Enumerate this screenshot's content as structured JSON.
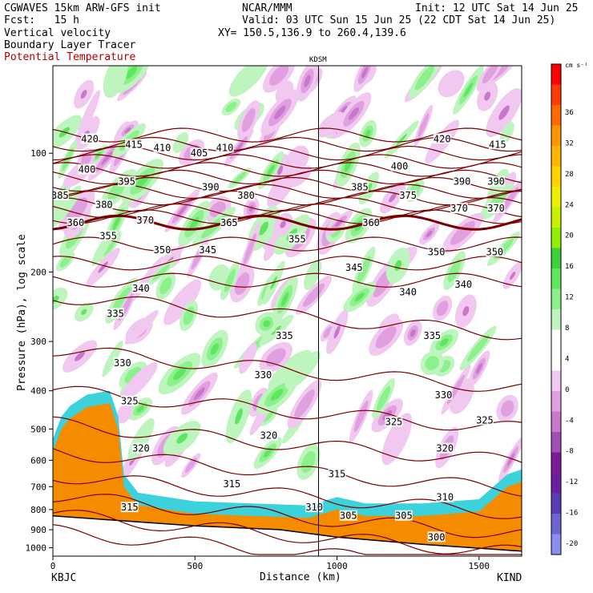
{
  "header": {
    "model": "CGWAVES 15km ARW-GFS init",
    "org": "NCAR/MMM",
    "init": "Init: 12 UTC Sat 14 Jun 25",
    "fcst": "Fcst:   15 h",
    "valid": "Valid: 03 UTC Sun 15 Jun 25 (22 CDT Sat 14 Jun 25)",
    "xy": "XY= 150.5,136.9 to 260.4,139.6",
    "fields": [
      "Vertical velocity",
      "Boundary Layer Tracer",
      "Potential Temperature"
    ]
  },
  "chart_data": {
    "type": "heatmap",
    "title": "",
    "xlabel": "Distance (km)",
    "ylabel": "Pressure (hPa), log scale",
    "xlim": [
      0,
      1650
    ],
    "ylim": [
      1050,
      60
    ],
    "yscale": "log",
    "x_ticks": [
      0,
      500,
      1000,
      1500
    ],
    "y_ticks": [
      100,
      200,
      300,
      400,
      500,
      600,
      700,
      800,
      900,
      1000
    ],
    "station_left": "KBJC",
    "station_right": "KIND",
    "station_mid": "KDSM",
    "station_mid_km": 935,
    "colorbar": {
      "units": "cm s⁻¹",
      "ticks": [
        36,
        32,
        28,
        24,
        20,
        16,
        12,
        8,
        4,
        0,
        -4,
        -8,
        -12,
        -16,
        -20
      ],
      "colors": [
        "#ff0000",
        "#ff3a00",
        "#ff6a00",
        "#ff9600",
        "#ffb400",
        "#ffd200",
        "#f0ee00",
        "#c8f000",
        "#90ee00",
        "#3cd23c",
        "#5ee65e",
        "#8cf08c",
        "#bef5be",
        "#ffffff",
        "#ffffff",
        "#f0c8f0",
        "#e0a0e0",
        "#c878c8",
        "#a050b4",
        "#7a1c96",
        "#6e1ea0",
        "#5a3cb4",
        "#6e64d2",
        "#8c8cf0"
      ]
    },
    "theta_labels": [
      {
        "v": "420",
        "x": 130,
        "p": 92
      },
      {
        "v": "415",
        "x": 285,
        "p": 95
      },
      {
        "v": "410",
        "x": 385,
        "p": 97
      },
      {
        "v": "405",
        "x": 515,
        "p": 100
      },
      {
        "v": "410",
        "x": 605,
        "p": 97
      },
      {
        "v": "420",
        "x": 1370,
        "p": 92
      },
      {
        "v": "415",
        "x": 1565,
        "p": 95
      },
      {
        "v": "400",
        "x": 120,
        "p": 110
      },
      {
        "v": "395",
        "x": 260,
        "p": 118
      },
      {
        "v": "390",
        "x": 555,
        "p": 122
      },
      {
        "v": "400",
        "x": 1220,
        "p": 108
      },
      {
        "v": "390",
        "x": 1440,
        "p": 118
      },
      {
        "v": "390",
        "x": 1560,
        "p": 118
      },
      {
        "v": "385",
        "x": 25,
        "p": 128
      },
      {
        "v": "380",
        "x": 180,
        "p": 135
      },
      {
        "v": "380",
        "x": 680,
        "p": 128
      },
      {
        "v": "385",
        "x": 1080,
        "p": 122
      },
      {
        "v": "375",
        "x": 1250,
        "p": 128
      },
      {
        "v": "370",
        "x": 325,
        "p": 148
      },
      {
        "v": "365",
        "x": 620,
        "p": 150
      },
      {
        "v": "370",
        "x": 1430,
        "p": 138
      },
      {
        "v": "370",
        "x": 1560,
        "p": 138
      },
      {
        "v": "360",
        "x": 80,
        "p": 150
      },
      {
        "v": "360",
        "x": 1120,
        "p": 150
      },
      {
        "v": "355",
        "x": 195,
        "p": 162
      },
      {
        "v": "355",
        "x": 860,
        "p": 165
      },
      {
        "v": "350",
        "x": 385,
        "p": 176
      },
      {
        "v": "345",
        "x": 545,
        "p": 176
      },
      {
        "v": "350",
        "x": 1350,
        "p": 178
      },
      {
        "v": "350",
        "x": 1555,
        "p": 178
      },
      {
        "v": "345",
        "x": 1060,
        "p": 195
      },
      {
        "v": "340",
        "x": 310,
        "p": 220
      },
      {
        "v": "340",
        "x": 1250,
        "p": 225
      },
      {
        "v": "340",
        "x": 1445,
        "p": 215
      },
      {
        "v": "335",
        "x": 220,
        "p": 255
      },
      {
        "v": "335",
        "x": 815,
        "p": 290
      },
      {
        "v": "335",
        "x": 1335,
        "p": 290
      },
      {
        "v": "330",
        "x": 245,
        "p": 340
      },
      {
        "v": "330",
        "x": 740,
        "p": 365
      },
      {
        "v": "330",
        "x": 1375,
        "p": 410
      },
      {
        "v": "325",
        "x": 270,
        "p": 425
      },
      {
        "v": "325",
        "x": 1200,
        "p": 480
      },
      {
        "v": "325",
        "x": 1520,
        "p": 475
      },
      {
        "v": "320",
        "x": 310,
        "p": 560
      },
      {
        "v": "320",
        "x": 760,
        "p": 520
      },
      {
        "v": "320",
        "x": 1380,
        "p": 560
      },
      {
        "v": "315",
        "x": 270,
        "p": 790
      },
      {
        "v": "315",
        "x": 630,
        "p": 690
      },
      {
        "v": "315",
        "x": 1000,
        "p": 650
      },
      {
        "v": "310",
        "x": 1380,
        "p": 745
      },
      {
        "v": "310",
        "x": 920,
        "p": 790
      },
      {
        "v": "305",
        "x": 1040,
        "p": 830
      },
      {
        "v": "305",
        "x": 1235,
        "p": 830
      },
      {
        "v": "300",
        "x": 1350,
        "p": 940
      }
    ]
  }
}
